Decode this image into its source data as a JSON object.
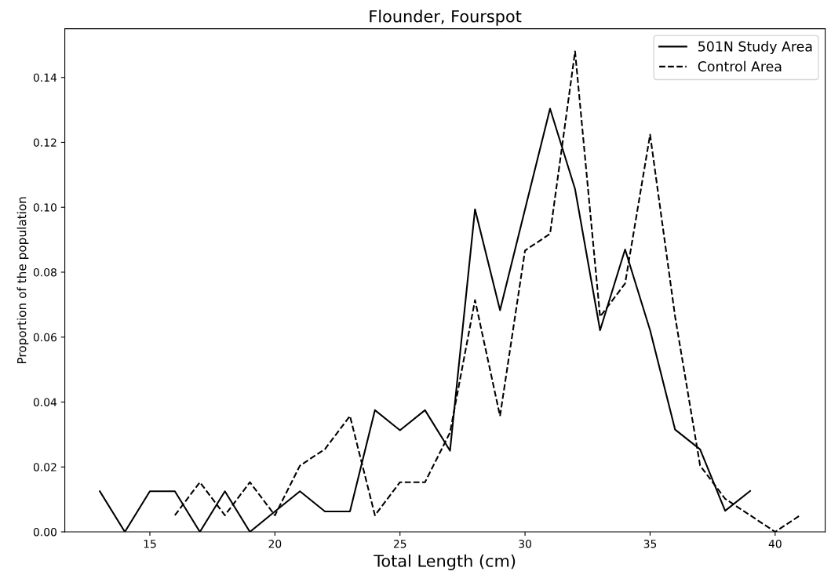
{
  "chart_data": {
    "type": "line",
    "title": "Flounder, Fourspot",
    "xlabel": "Total Length (cm)",
    "ylabel": "Proportion of the population",
    "xlim": [
      11.6,
      42.0
    ],
    "xticks": [
      15,
      20,
      25,
      30,
      35,
      40
    ],
    "ylim": [
      0,
      0.155
    ],
    "yticks": [
      {
        "value": 0,
        "label": "0.00"
      },
      {
        "value": 0.02,
        "label": "0.02"
      },
      {
        "value": 0.04,
        "label": "0.04"
      },
      {
        "value": 0.06,
        "label": "0.06"
      },
      {
        "value": 0.08,
        "label": "0.08"
      },
      {
        "value": 0.1,
        "label": "0.10"
      },
      {
        "value": 0.12,
        "label": "0.12"
      },
      {
        "value": 0.14,
        "label": "0.14"
      }
    ],
    "grid": false,
    "legend": "top right",
    "series": [
      {
        "name": "501N Study Area",
        "color": "#000000",
        "line_style": "solid",
        "x": [
          13,
          14,
          15,
          16,
          17,
          18,
          19,
          20,
          21,
          22,
          23,
          24,
          25,
          26,
          27,
          28,
          29,
          30,
          31,
          32,
          33,
          34,
          35,
          36,
          37,
          38,
          39
        ],
        "values": [
          0.0125,
          0,
          0.0125,
          0.0125,
          0,
          0.0125,
          0,
          0.0063,
          0.0125,
          0.0063,
          0.0063,
          0.0375,
          0.0313,
          0.0375,
          0.025,
          0.0994,
          0.0683,
          0.0994,
          0.1304,
          0.1056,
          0.0621,
          0.087,
          0.0621,
          0.0315,
          0.0254,
          0.0065,
          0.0126
        ]
      },
      {
        "name": "Control Area",
        "color": "#000000",
        "line_style": "dashed",
        "x": [
          16,
          17,
          18,
          19,
          20,
          21,
          22,
          23,
          24,
          25,
          26,
          27,
          28,
          29,
          30,
          31,
          32,
          33,
          34,
          35,
          36,
          37,
          38,
          39,
          40,
          41
        ],
        "values": [
          0.0051,
          0.0153,
          0.0051,
          0.0153,
          0.0051,
          0.0204,
          0.0255,
          0.0357,
          0.0051,
          0.0153,
          0.0153,
          0.0306,
          0.0714,
          0.0357,
          0.0867,
          0.0918,
          0.148,
          0.0663,
          0.0765,
          0.1224,
          0.0663,
          0.0204,
          0.0102,
          0.0051,
          0,
          0.0051
        ]
      }
    ]
  }
}
